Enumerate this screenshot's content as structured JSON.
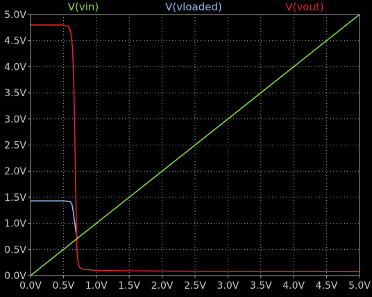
{
  "colors": {
    "background": "#000000",
    "frame": "#a0a0a0",
    "grid": "#a0a0a0",
    "tick_text": "#c8c8c8",
    "vin": "#7fdc3c",
    "vloaded": "#8fb5ea",
    "vout": "#e0202a"
  },
  "chart_data": {
    "type": "line",
    "title": "",
    "xlabel": "",
    "ylabel": "",
    "xlim": [
      0,
      5
    ],
    "ylim": [
      0,
      5
    ],
    "grid": true,
    "legend_placement": "top",
    "x_ticks": [
      0,
      0.5,
      1,
      1.5,
      2,
      2.5,
      3,
      3.5,
      4,
      4.5,
      5
    ],
    "x_tick_labels": [
      "0.0V",
      "0.5V",
      "1.0V",
      "1.5V",
      "2.0V",
      "2.5V",
      "3.0V",
      "3.5V",
      "4.0V",
      "4.5V",
      "5.0V"
    ],
    "y_ticks": [
      0,
      0.5,
      1,
      1.5,
      2,
      2.5,
      3,
      3.5,
      4,
      4.5,
      5
    ],
    "y_tick_labels": [
      "0.0V",
      "0.5V",
      "1.0V",
      "1.5V",
      "2.0V",
      "2.5V",
      "3.0V",
      "3.5V",
      "4.0V",
      "4.5V",
      "5.0V"
    ],
    "series": [
      {
        "name": "V(vin)",
        "color": "#7fdc3c",
        "x": [
          0,
          5
        ],
        "y": [
          0,
          5
        ]
      },
      {
        "name": "V(vloaded)",
        "color": "#8fb5ea",
        "x": [
          0,
          0.5,
          0.6,
          0.63,
          0.65,
          0.67,
          0.69,
          0.71
        ],
        "y": [
          1.43,
          1.43,
          1.42,
          1.36,
          1.22,
          1.02,
          0.84,
          0.72
        ]
      },
      {
        "name": "V(vout)",
        "color": "#e0202a",
        "x": [
          0,
          0.5,
          0.57,
          0.6,
          0.62,
          0.64,
          0.655,
          0.665,
          0.675,
          0.685,
          0.69,
          0.695,
          0.7,
          0.705,
          0.71,
          0.72,
          0.73,
          0.75,
          0.8,
          1.0,
          1.5,
          2,
          3,
          4,
          5
        ],
        "y": [
          4.8,
          4.8,
          4.78,
          4.72,
          4.6,
          4.3,
          3.8,
          3.2,
          2.5,
          1.8,
          1.45,
          1.1,
          0.8,
          0.55,
          0.4,
          0.27,
          0.2,
          0.15,
          0.12,
          0.1,
          0.09,
          0.085,
          0.08,
          0.078,
          0.075
        ]
      }
    ]
  }
}
